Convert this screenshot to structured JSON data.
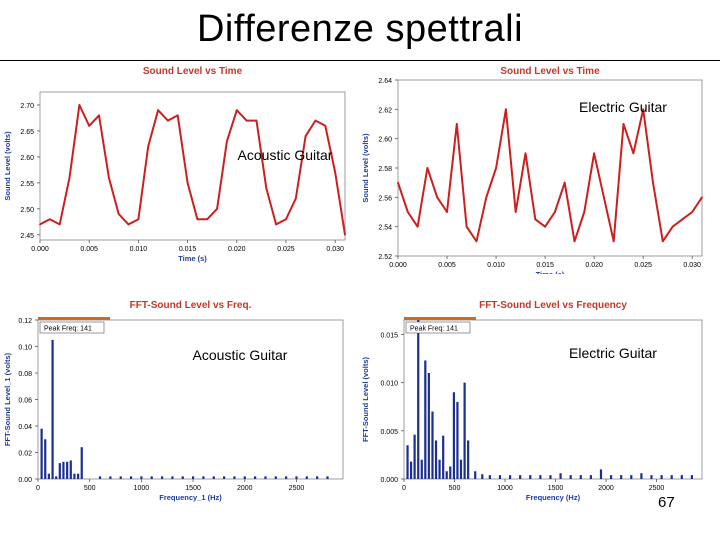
{
  "slide": {
    "title": "Differenze spettrali",
    "page_number": "67"
  },
  "colors": {
    "time_trace": "#cc1f1f",
    "fft_bar": "#1a2f8f",
    "title_text": "#c0392b",
    "axis_label": "#1f3d99",
    "marker_bar": "#d2691e"
  },
  "chart_data": [
    {
      "type": "line",
      "title": "Sound Level vs Time",
      "xlabel": "Time (s)",
      "ylabel": "Sound Level (volts)",
      "annotation": "Acoustic Guitar",
      "xlim": [
        0,
        0.031
      ],
      "ylim": [
        2.44,
        2.725
      ],
      "xticks": [
        {
          "v": 0,
          "label": "0.000"
        },
        {
          "v": 0.005,
          "label": "0.005"
        },
        {
          "v": 0.01,
          "label": "0.010"
        },
        {
          "v": 0.015,
          "label": "0.015"
        },
        {
          "v": 0.02,
          "label": "0.020"
        },
        {
          "v": 0.025,
          "label": "0.025"
        },
        {
          "v": 0.03,
          "label": "0.030"
        }
      ],
      "yticks": [
        {
          "v": 2.45,
          "label": "2.45"
        },
        {
          "v": 2.5,
          "label": "2.50"
        },
        {
          "v": 2.55,
          "label": "2.55"
        },
        {
          "v": 2.6,
          "label": "2.60"
        },
        {
          "v": 2.65,
          "label": "2.65"
        },
        {
          "v": 2.7,
          "label": "2.70"
        }
      ],
      "x": [
        0,
        0.001,
        0.002,
        0.003,
        0.004,
        0.005,
        0.006,
        0.007,
        0.008,
        0.009,
        0.01,
        0.011,
        0.012,
        0.013,
        0.014,
        0.015,
        0.016,
        0.017,
        0.018,
        0.019,
        0.02,
        0.021,
        0.022,
        0.023,
        0.024,
        0.025,
        0.026,
        0.027,
        0.028,
        0.029,
        0.03,
        0.031
      ],
      "values": [
        2.47,
        2.48,
        2.47,
        2.56,
        2.7,
        2.66,
        2.68,
        2.56,
        2.49,
        2.47,
        2.48,
        2.62,
        2.69,
        2.67,
        2.68,
        2.55,
        2.48,
        2.48,
        2.5,
        2.63,
        2.69,
        2.67,
        2.67,
        2.54,
        2.47,
        2.48,
        2.52,
        2.64,
        2.67,
        2.66,
        2.57,
        2.45
      ]
    },
    {
      "type": "line",
      "title": "Sound Level vs Time",
      "xlabel": "Time (s)",
      "ylabel": "Sound Level (volts)",
      "annotation": "Electric Guitar",
      "xlim": [
        0,
        0.031
      ],
      "ylim": [
        2.52,
        2.64
      ],
      "xticks": [
        {
          "v": 0,
          "label": "0.000"
        },
        {
          "v": 0.005,
          "label": "0.005"
        },
        {
          "v": 0.01,
          "label": "0.010"
        },
        {
          "v": 0.015,
          "label": "0.015"
        },
        {
          "v": 0.02,
          "label": "0.020"
        },
        {
          "v": 0.025,
          "label": "0.025"
        },
        {
          "v": 0.03,
          "label": "0.030"
        }
      ],
      "yticks": [
        {
          "v": 2.52,
          "label": "2.52"
        },
        {
          "v": 2.54,
          "label": "2.54"
        },
        {
          "v": 2.56,
          "label": "2.56"
        },
        {
          "v": 2.58,
          "label": "2.58"
        },
        {
          "v": 2.6,
          "label": "2.60"
        },
        {
          "v": 2.62,
          "label": "2.62"
        },
        {
          "v": 2.64,
          "label": "2.64"
        }
      ],
      "x": [
        0,
        0.001,
        0.002,
        0.003,
        0.004,
        0.005,
        0.006,
        0.007,
        0.008,
        0.009,
        0.01,
        0.011,
        0.012,
        0.013,
        0.014,
        0.015,
        0.016,
        0.017,
        0.018,
        0.019,
        0.02,
        0.021,
        0.022,
        0.023,
        0.024,
        0.025,
        0.026,
        0.027,
        0.028,
        0.029,
        0.03,
        0.031
      ],
      "values": [
        2.57,
        2.55,
        2.54,
        2.58,
        2.56,
        2.55,
        2.61,
        2.54,
        2.53,
        2.56,
        2.58,
        2.62,
        2.55,
        2.59,
        2.545,
        2.54,
        2.55,
        2.57,
        2.53,
        2.55,
        2.59,
        2.56,
        2.53,
        2.61,
        2.59,
        2.62,
        2.57,
        2.53,
        2.54,
        2.545,
        2.55,
        2.56
      ]
    },
    {
      "type": "bar",
      "title": "FFT-Sound Level vs Freq.",
      "xlabel": "Frequency_1 (Hz)",
      "ylabel": "FFT-Sound Level_1 (volts)",
      "annotation": "Acoustic Guitar",
      "marker_label": "Peak Freq: 141",
      "xlim": [
        0,
        2950
      ],
      "ylim": [
        0,
        0.12
      ],
      "xticks": [
        {
          "v": 0,
          "label": "0"
        },
        {
          "v": 500,
          "label": "500"
        },
        {
          "v": 1000,
          "label": "1000"
        },
        {
          "v": 1500,
          "label": "1500"
        },
        {
          "v": 2000,
          "label": "2000"
        },
        {
          "v": 2500,
          "label": "2500"
        }
      ],
      "yticks": [
        {
          "v": 0,
          "label": "0.00"
        },
        {
          "v": 0.02,
          "label": "0.02"
        },
        {
          "v": 0.04,
          "label": "0.04"
        },
        {
          "v": 0.06,
          "label": "0.06"
        },
        {
          "v": 0.08,
          "label": "0.08"
        },
        {
          "v": 0.1,
          "label": "0.10"
        },
        {
          "v": 0.12,
          "label": "0.12"
        }
      ],
      "x": [
        35,
        70,
        105,
        141,
        176,
        211,
        246,
        282,
        317,
        352,
        388,
        423,
        600,
        700,
        800,
        900,
        1000,
        1100,
        1200,
        1300,
        1400,
        1500,
        1600,
        1700,
        1800,
        1900,
        2000,
        2100,
        2200,
        2300,
        2400,
        2500,
        2600,
        2700,
        2800
      ],
      "values": [
        0.038,
        0.03,
        0.004,
        0.105,
        0.002,
        0.012,
        0.013,
        0.013,
        0.014,
        0.004,
        0.004,
        0.024,
        0.002,
        0.002,
        0.002,
        0.002,
        0.002,
        0.002,
        0.002,
        0.002,
        0.002,
        0.002,
        0.002,
        0.002,
        0.002,
        0.002,
        0.002,
        0.002,
        0.002,
        0.002,
        0.002,
        0.002,
        0.002,
        0.002,
        0.002
      ]
    },
    {
      "type": "bar",
      "title": "FFT-Sound Level vs Frequency",
      "xlabel": "Frequency (Hz)",
      "ylabel": "FFT-Sound Level (volts)",
      "annotation": "Electric Guitar",
      "marker_label": "Peak Freq: 141",
      "xlim": [
        0,
        2950
      ],
      "ylim": [
        0,
        0.0165
      ],
      "xticks": [
        {
          "v": 0,
          "label": "0"
        },
        {
          "v": 500,
          "label": "500"
        },
        {
          "v": 1000,
          "label": "1000"
        },
        {
          "v": 1500,
          "label": "1500"
        },
        {
          "v": 2000,
          "label": "2000"
        },
        {
          "v": 2500,
          "label": "2500"
        }
      ],
      "yticks": [
        {
          "v": 0,
          "label": "0.000"
        },
        {
          "v": 0.005,
          "label": "0.005"
        },
        {
          "v": 0.01,
          "label": "0.010"
        },
        {
          "v": 0.015,
          "label": "0.015"
        }
      ],
      "x": [
        35,
        70,
        105,
        141,
        176,
        211,
        246,
        282,
        317,
        352,
        388,
        423,
        458,
        494,
        529,
        564,
        600,
        635,
        705,
        775,
        850,
        950,
        1050,
        1150,
        1250,
        1350,
        1450,
        1550,
        1650,
        1750,
        1850,
        1950,
        2050,
        2150,
        2250,
        2350,
        2450,
        2550,
        2650,
        2750,
        2850
      ],
      "values": [
        0.0035,
        0.0018,
        0.0046,
        0.0165,
        0.002,
        0.0123,
        0.011,
        0.007,
        0.004,
        0.002,
        0.0045,
        0.0008,
        0.0013,
        0.009,
        0.008,
        0.002,
        0.01,
        0.004,
        0.0008,
        0.0005,
        0.0004,
        0.0004,
        0.0004,
        0.0004,
        0.0004,
        0.0004,
        0.0004,
        0.0006,
        0.0004,
        0.0004,
        0.0004,
        0.001,
        0.0004,
        0.0004,
        0.0004,
        0.0006,
        0.0004,
        0.0004,
        0.0004,
        0.0004,
        0.0004
      ]
    }
  ]
}
